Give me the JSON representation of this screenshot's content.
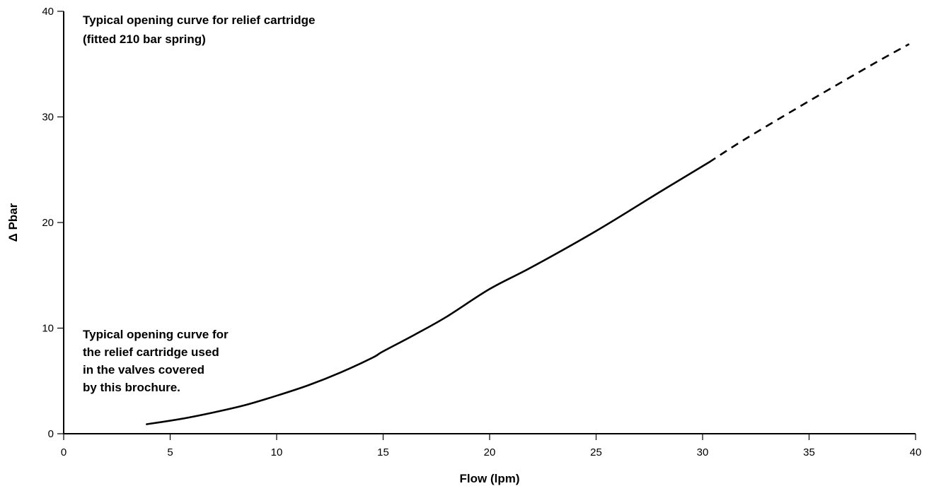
{
  "chart_data": {
    "type": "line",
    "title": "",
    "xlabel": "Flow (lpm)",
    "ylabel": "Δ Pbar",
    "xlim": [
      0,
      40
    ],
    "ylim": [
      0,
      40
    ],
    "x_ticks": [
      0,
      5,
      10,
      15,
      20,
      25,
      30,
      35,
      40
    ],
    "y_ticks": [
      0,
      10,
      20,
      30,
      40
    ],
    "grid": false,
    "annotations": [
      [
        "Typical opening curve for relief cartridge",
        "(fitted 210 bar spring)"
      ],
      [
        "Typical opening curve for",
        "the relief cartridge used",
        "in the valves covered",
        "by this brochure."
      ]
    ],
    "series": [
      {
        "style": "solid",
        "color": "#000000",
        "points": [
          [
            3.9,
            0.9
          ],
          [
            5.5,
            1.4
          ],
          [
            7.0,
            2.0
          ],
          [
            8.5,
            2.7
          ],
          [
            10.0,
            3.6
          ],
          [
            11.5,
            4.6
          ],
          [
            13.0,
            5.8
          ],
          [
            14.5,
            7.2
          ],
          [
            15.0,
            7.8
          ],
          [
            16.5,
            9.4
          ],
          [
            18.0,
            11.1
          ],
          [
            20.0,
            13.7
          ],
          [
            22.0,
            15.8
          ],
          [
            25.0,
            19.2
          ],
          [
            28.0,
            22.9
          ],
          [
            30.3,
            25.7
          ]
        ]
      },
      {
        "style": "dashed",
        "color": "#000000",
        "points": [
          [
            30.3,
            25.7
          ],
          [
            32.0,
            27.9
          ],
          [
            35.0,
            31.5
          ],
          [
            38.0,
            35.0
          ],
          [
            39.7,
            36.9
          ]
        ]
      }
    ]
  }
}
